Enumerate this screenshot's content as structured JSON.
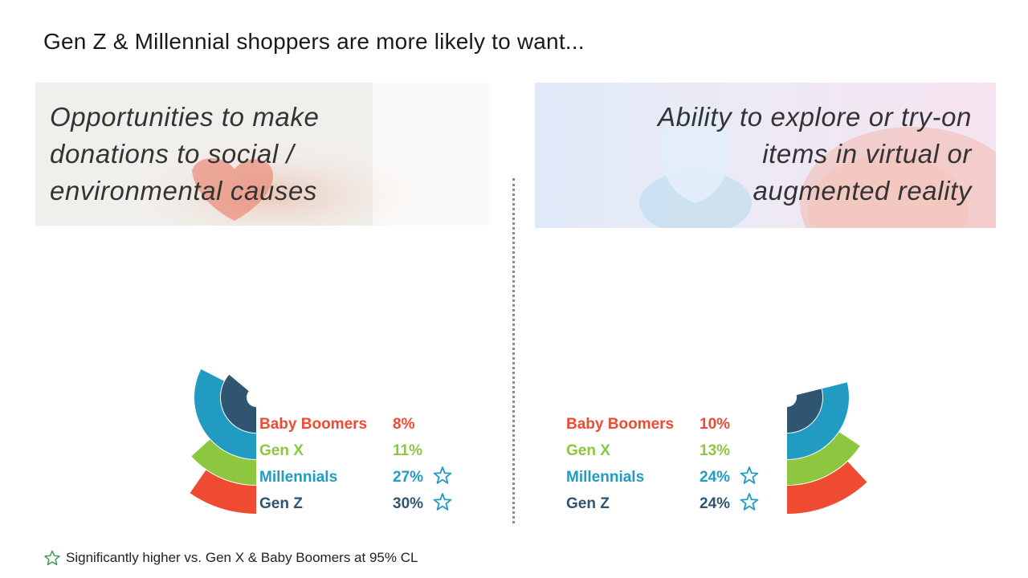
{
  "title": "Gen Z & Millennial shoppers are more likely to want...",
  "panels": {
    "left_heading": [
      "Opportunities to make",
      "donations to social /",
      "environmental causes"
    ],
    "right_heading": [
      "Ability to explore or try-on",
      "items in virtual or",
      "augmented reality"
    ]
  },
  "footnote": "Significantly higher vs. Gen X & Baby Boomers at 95% CL",
  "icons": {
    "significance": "star-outline-icon"
  },
  "chart_data": [
    {
      "type": "radial-bar",
      "title": "Opportunities to make donations to social / environmental causes",
      "categories": [
        "Baby Boomers",
        "Gen X",
        "Millennials",
        "Gen Z"
      ],
      "values": [
        8,
        11,
        27,
        30
      ],
      "value_labels": [
        "8%",
        "11%",
        "27%",
        "30%"
      ],
      "significant": [
        false,
        false,
        true,
        true
      ],
      "colors": [
        "#ef4b33",
        "#8dc63f",
        "#219bc2",
        "#2f5570"
      ]
    },
    {
      "type": "radial-bar",
      "title": "Ability to explore or try-on items in virtual or augmented reality",
      "categories": [
        "Baby Boomers",
        "Gen X",
        "Millennials",
        "Gen Z"
      ],
      "values": [
        10,
        13,
        24,
        24
      ],
      "value_labels": [
        "10%",
        "13%",
        "24%",
        "24%"
      ],
      "significant": [
        false,
        false,
        true,
        true
      ],
      "colors": [
        "#ef4b33",
        "#8dc63f",
        "#219bc2",
        "#2f5570"
      ]
    }
  ]
}
